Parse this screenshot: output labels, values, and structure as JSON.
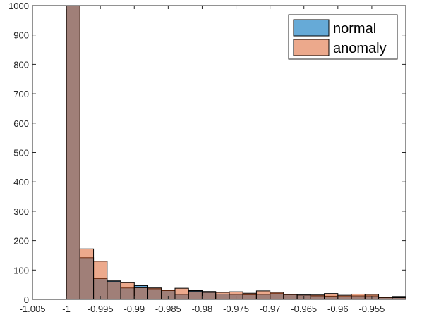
{
  "chart_data": {
    "type": "bar",
    "subtype": "overlaid-histogram",
    "title": "",
    "xlabel": "",
    "ylabel": "",
    "xlim": [
      -1.005,
      -0.95
    ],
    "ylim": [
      0,
      1000
    ],
    "bin_width": 0.002,
    "bin_edges": [
      -1.0,
      -0.998,
      -0.996,
      -0.994,
      -0.992,
      -0.99,
      -0.988,
      -0.986,
      -0.984,
      -0.982,
      -0.98,
      -0.978,
      -0.976,
      -0.974,
      -0.972,
      -0.97,
      -0.968,
      -0.966,
      -0.964,
      -0.962,
      -0.96,
      -0.958,
      -0.956,
      -0.954,
      -0.952,
      -0.95
    ],
    "x_ticks": [
      "-1.005",
      "-1",
      "-0.995",
      "-0.99",
      "-0.985",
      "-0.98",
      "-0.975",
      "-0.97",
      "-0.965",
      "-0.96",
      "-0.955"
    ],
    "x_tick_values": [
      -1.005,
      -1.0,
      -0.995,
      -0.99,
      -0.985,
      -0.98,
      -0.975,
      -0.97,
      -0.965,
      -0.96,
      -0.955
    ],
    "y_ticks": [
      "0",
      "100",
      "200",
      "300",
      "400",
      "500",
      "600",
      "700",
      "800",
      "900",
      "1000"
    ],
    "y_tick_values": [
      0,
      100,
      200,
      300,
      400,
      500,
      600,
      700,
      800,
      900,
      1000
    ],
    "grid": false,
    "legend_position": "top-right",
    "series": [
      {
        "name": "normal",
        "color": "#0072bd",
        "values": [
          1000,
          142,
          71,
          63,
          39,
          47,
          36,
          30,
          17,
          30,
          27,
          18,
          17,
          16,
          17,
          20,
          16,
          15,
          12,
          11,
          10,
          12,
          12,
          6,
          10
        ]
      },
      {
        "name": "anomaly",
        "color": "#d95319",
        "values": [
          1000,
          172,
          130,
          60,
          57,
          40,
          39,
          32,
          38,
          27,
          24,
          24,
          26,
          21,
          29,
          24,
          17,
          15,
          15,
          20,
          14,
          18,
          17,
          7,
          6
        ]
      }
    ]
  }
}
